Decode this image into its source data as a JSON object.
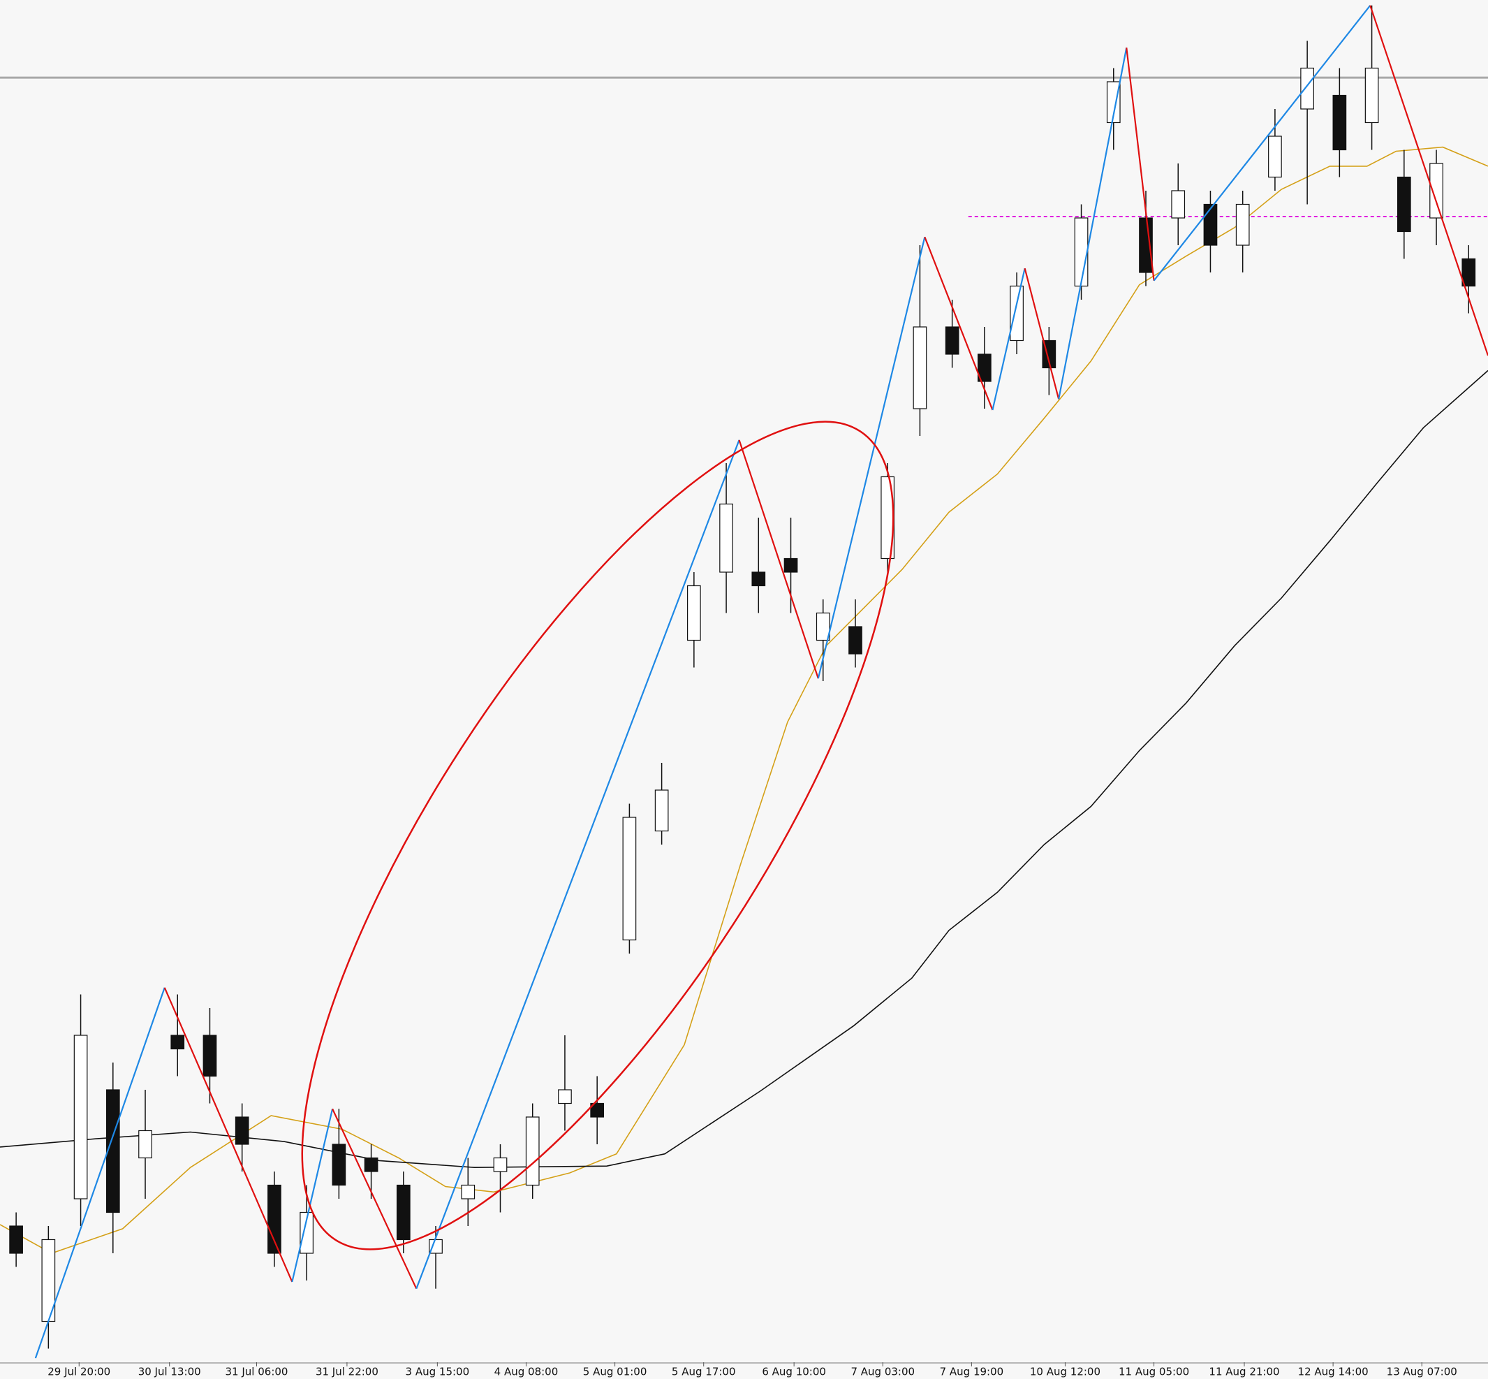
{
  "chart_data": {
    "type": "candlestick",
    "xlim": [
      0,
      92.2
    ],
    "ylim": [
      0,
      100
    ],
    "xticks": [
      {
        "value": 4.9,
        "label": "29 Jul 20:00"
      },
      {
        "value": 10.5,
        "label": "30 Jul 13:00"
      },
      {
        "value": 15.9,
        "label": "31 Jul 06:00"
      },
      {
        "value": 21.5,
        "label": "31 Jul 22:00"
      },
      {
        "value": 27.1,
        "label": "3 Aug 15:00"
      },
      {
        "value": 32.6,
        "label": "4 Aug 08:00"
      },
      {
        "value": 38.1,
        "label": "5 Aug 01:00"
      },
      {
        "value": 43.6,
        "label": "5 Aug 17:00"
      },
      {
        "value": 49.2,
        "label": "6 Aug 10:00"
      },
      {
        "value": 54.7,
        "label": "7 Aug 03:00"
      },
      {
        "value": 60.2,
        "label": "7 Aug 19:00"
      },
      {
        "value": 66.0,
        "label": "10 Aug 12:00"
      },
      {
        "value": 71.5,
        "label": "11 Aug 05:00"
      },
      {
        "value": 77.1,
        "label": "11 Aug 21:00"
      },
      {
        "value": 82.6,
        "label": "12 Aug 14:00"
      },
      {
        "value": 88.1,
        "label": "13 Aug 07:00"
      }
    ],
    "candles": {
      "x": [
        1,
        3,
        5,
        7,
        9,
        11,
        13,
        15,
        17,
        19,
        21,
        23,
        25,
        27,
        29,
        31,
        33,
        35,
        37,
        39,
        41,
        43,
        45,
        47,
        49,
        51,
        53,
        55,
        57,
        59,
        61,
        63,
        65,
        67,
        69,
        71,
        73,
        75,
        77,
        79,
        81,
        83,
        85,
        87,
        89,
        91
      ],
      "open": [
        10,
        3,
        12,
        20,
        15,
        24,
        24,
        18,
        13,
        8,
        16,
        15,
        13,
        8,
        12,
        14,
        13,
        19,
        19,
        31,
        39,
        53,
        58,
        58,
        59,
        53,
        54,
        59,
        70,
        76,
        74,
        75,
        75,
        79,
        91,
        84,
        84,
        85,
        82,
        87,
        92,
        93,
        91,
        87,
        84,
        81
      ],
      "high": [
        11,
        10,
        27,
        22,
        20,
        27,
        26,
        19,
        14,
        13,
        18.6,
        16,
        14,
        10,
        15,
        16,
        19,
        24,
        21,
        41,
        44,
        58,
        66,
        62,
        62,
        56,
        56,
        66,
        82,
        78,
        76,
        80,
        76,
        85,
        95,
        86,
        88,
        86,
        86,
        92,
        97,
        95,
        99.6,
        89,
        89,
        82
      ],
      "low": [
        7,
        1,
        10,
        8,
        12,
        21,
        19,
        14,
        7,
        6,
        12,
        12,
        8,
        5.4,
        10,
        11,
        12,
        17,
        16,
        30,
        38,
        51,
        55,
        55,
        55,
        50,
        51,
        58,
        68,
        73,
        70,
        74,
        71,
        78,
        89,
        79,
        82,
        80,
        80,
        86,
        85,
        87,
        89,
        81,
        82,
        77
      ],
      "close": [
        8,
        9,
        24,
        11,
        17,
        23,
        21,
        16,
        8,
        11,
        13,
        14,
        9,
        9,
        13,
        15,
        18,
        20,
        18,
        40,
        42,
        57,
        63,
        57,
        58,
        55,
        52,
        65,
        76,
        74,
        72,
        79,
        73,
        84,
        94,
        80,
        86,
        82,
        85,
        90,
        95,
        89,
        95,
        83,
        88,
        79
      ],
      "up_color": "#ffffff",
      "down_color": "#111111",
      "edge_color": "#111111"
    },
    "overlays": [
      {
        "color": "#d4a017",
        "x": [
          0,
          3.2,
          7.6,
          11.8,
          16.8,
          21.2,
          24.7,
          27.6,
          30.6,
          35.3,
          38.2,
          42.4,
          45.9,
          48.8,
          51.2,
          55.9,
          58.8,
          61.8,
          64.7,
          67.6,
          70.6,
          73.5,
          76.5,
          79.4,
          82.4,
          84.7,
          86.5,
          89.4,
          92.2
        ],
        "values": [
          10.1,
          8.0,
          9.8,
          14.3,
          18.1,
          17.1,
          15.0,
          12.9,
          12.5,
          13.9,
          15.3,
          23.3,
          36.6,
          47.0,
          52.6,
          58.2,
          62.4,
          65.2,
          69.3,
          73.5,
          79.1,
          81.2,
          83.3,
          86.1,
          87.8,
          87.8,
          88.9,
          89.2,
          87.8
        ]
      },
      {
        "color": "#111111",
        "x": [
          0,
          5.9,
          11.8,
          17.6,
          23.5,
          29.4,
          37.6,
          41.2,
          47.1,
          52.9,
          56.5,
          58.8,
          61.8,
          64.7,
          67.6,
          70.6,
          73.5,
          76.5,
          79.4,
          82.4,
          85.3,
          88.2,
          92.2
        ],
        "values": [
          15.8,
          16.4,
          16.9,
          16.2,
          14.8,
          14.3,
          14.4,
          15.3,
          19.9,
          24.7,
          28.2,
          31.7,
          34.5,
          38.0,
          40.8,
          44.9,
          48.4,
          52.6,
          56.1,
          60.3,
          64.5,
          68.6,
          72.8
        ]
      }
    ],
    "zigzag": {
      "x": [
        2.2,
        10.2,
        18.1,
        20.6,
        25.8,
        45.8,
        50.7,
        57.3,
        61.5,
        63.5,
        65.6,
        69.8,
        71.5,
        84.9,
        92.2
      ],
      "values": [
        0.3,
        27.5,
        5.9,
        18.6,
        5.4,
        67.7,
        50.2,
        82.6,
        69.9,
        80.3,
        70.7,
        96.5,
        79.4,
        99.6,
        73.9
      ],
      "up_color": "#1e88e5",
      "down_color": "#e01010"
    },
    "level_line": {
      "value": 94.3,
      "color": "#a8a8a8"
    },
    "dashed_level": {
      "value": 84.1,
      "x_start": 60,
      "color": "#e020e0"
    }
  }
}
